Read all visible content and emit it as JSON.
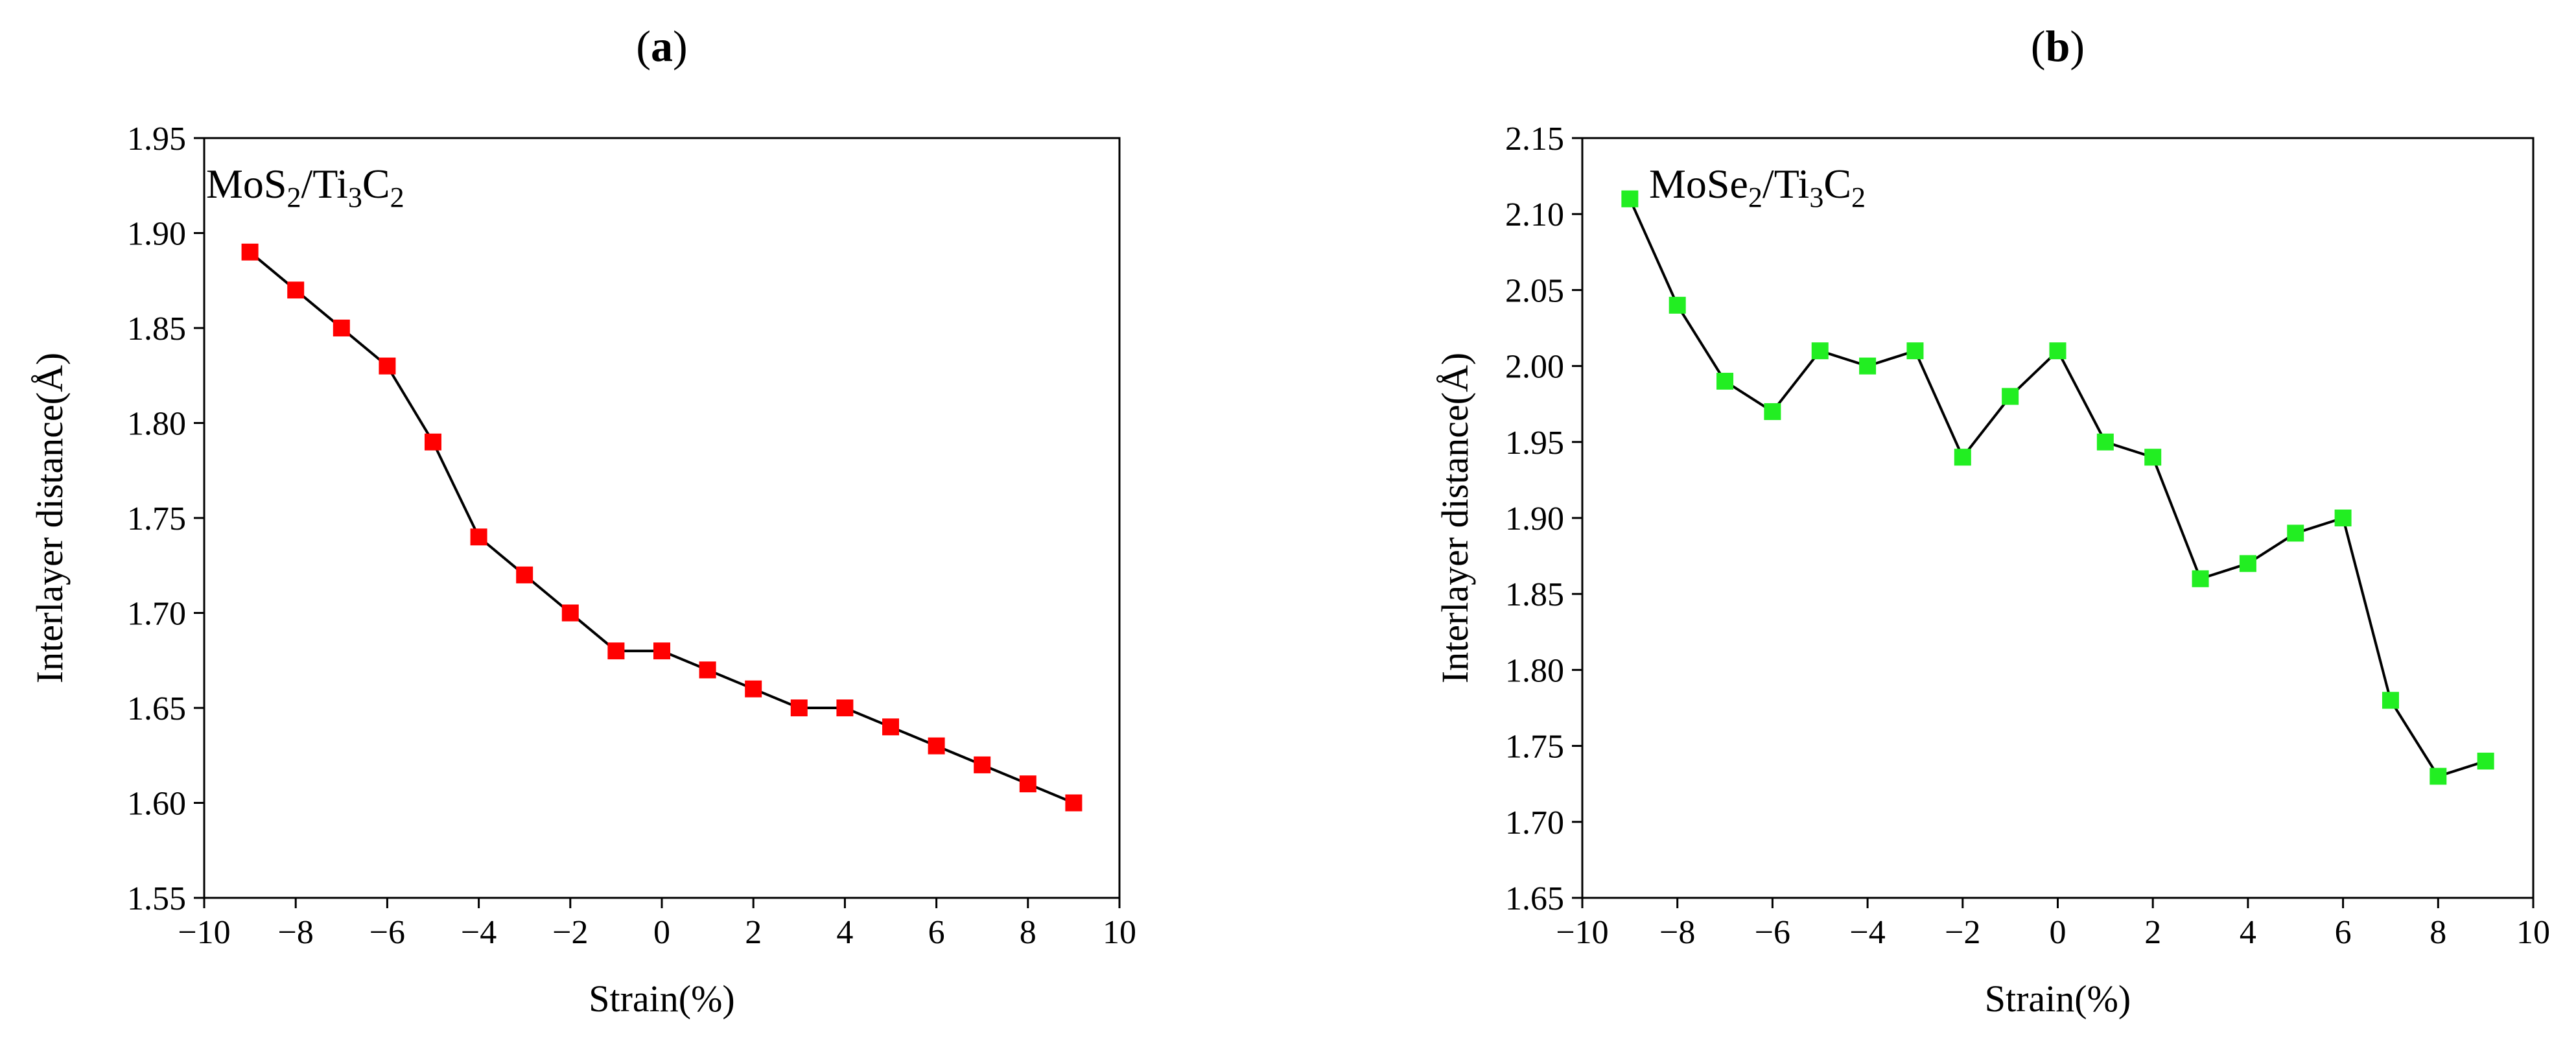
{
  "chart_data": [
    {
      "type": "line",
      "panel_label": "a",
      "title": "",
      "annotation": {
        "parts": [
          {
            "t": "MoS"
          },
          {
            "t": "2",
            "sub": true
          },
          {
            "t": "/Ti"
          },
          {
            "t": "3",
            "sub": true
          },
          {
            "t": "C"
          },
          {
            "t": "2",
            "sub": true
          }
        ]
      },
      "xlabel": "Strain(%)",
      "ylabel": "Interlayer distance(Å)",
      "xlim": [
        -10,
        10
      ],
      "ylim": [
        1.55,
        1.95
      ],
      "xticks": [
        -10,
        -8,
        -6,
        -4,
        -2,
        0,
        2,
        4,
        6,
        8,
        10
      ],
      "xtick_labels": [
        "−10",
        "−8",
        "−6",
        "−4",
        "−2",
        "0",
        "2",
        "4",
        "6",
        "8",
        "10"
      ],
      "yticks": [
        1.55,
        1.6,
        1.65,
        1.7,
        1.75,
        1.8,
        1.85,
        1.9,
        1.95
      ],
      "ytick_labels": [
        "1.55",
        "1.60",
        "1.65",
        "1.70",
        "1.75",
        "1.80",
        "1.85",
        "1.90",
        "1.95"
      ],
      "grid": false,
      "marker_color": "#ff0000",
      "line_color": "#000000",
      "series": [
        {
          "name": "MoS2/Ti3C2",
          "x": [
            -9,
            -8,
            -7,
            -6,
            -5,
            -4,
            -3,
            -2,
            -1,
            0,
            1,
            2,
            3,
            4,
            5,
            6,
            7,
            8,
            9
          ],
          "y": [
            1.89,
            1.87,
            1.85,
            1.83,
            1.79,
            1.74,
            1.72,
            1.7,
            1.68,
            1.68,
            1.67,
            1.66,
            1.65,
            1.65,
            1.64,
            1.63,
            1.62,
            1.61,
            1.6
          ]
        }
      ]
    },
    {
      "type": "line",
      "panel_label": "b",
      "title": "",
      "annotation": {
        "parts": [
          {
            "t": "MoSe"
          },
          {
            "t": "2",
            "sub": true
          },
          {
            "t": "/Ti"
          },
          {
            "t": "3",
            "sub": true
          },
          {
            "t": "C"
          },
          {
            "t": "2",
            "sub": true
          }
        ]
      },
      "xlabel": "Strain(%)",
      "ylabel": "Interlayer distance(Å)",
      "xlim": [
        -10,
        10
      ],
      "ylim": [
        1.65,
        2.15
      ],
      "xticks": [
        -10,
        -8,
        -6,
        -4,
        -2,
        0,
        2,
        4,
        6,
        8,
        10
      ],
      "xtick_labels": [
        "−10",
        "−8",
        "−6",
        "−4",
        "−2",
        "0",
        "2",
        "4",
        "6",
        "8",
        "10"
      ],
      "yticks": [
        1.65,
        1.7,
        1.75,
        1.8,
        1.85,
        1.9,
        1.95,
        2.0,
        2.05,
        2.1,
        2.15
      ],
      "ytick_labels": [
        "1.65",
        "1.70",
        "1.75",
        "1.80",
        "1.85",
        "1.90",
        "1.95",
        "2.00",
        "2.05",
        "2.10",
        "2.15"
      ],
      "grid": false,
      "marker_color": "#22ee22",
      "line_color": "#000000",
      "series": [
        {
          "name": "MoSe2/Ti3C2",
          "x": [
            -9,
            -8,
            -7,
            -6,
            -5,
            -4,
            -3,
            -2,
            -1,
            0,
            1,
            2,
            3,
            4,
            5,
            6,
            7,
            8,
            9
          ],
          "y": [
            2.11,
            2.04,
            1.99,
            1.97,
            2.01,
            2.0,
            2.01,
            1.94,
            1.98,
            2.01,
            1.95,
            1.94,
            1.86,
            1.87,
            1.89,
            1.9,
            1.78,
            1.73,
            1.74
          ]
        }
      ]
    }
  ]
}
